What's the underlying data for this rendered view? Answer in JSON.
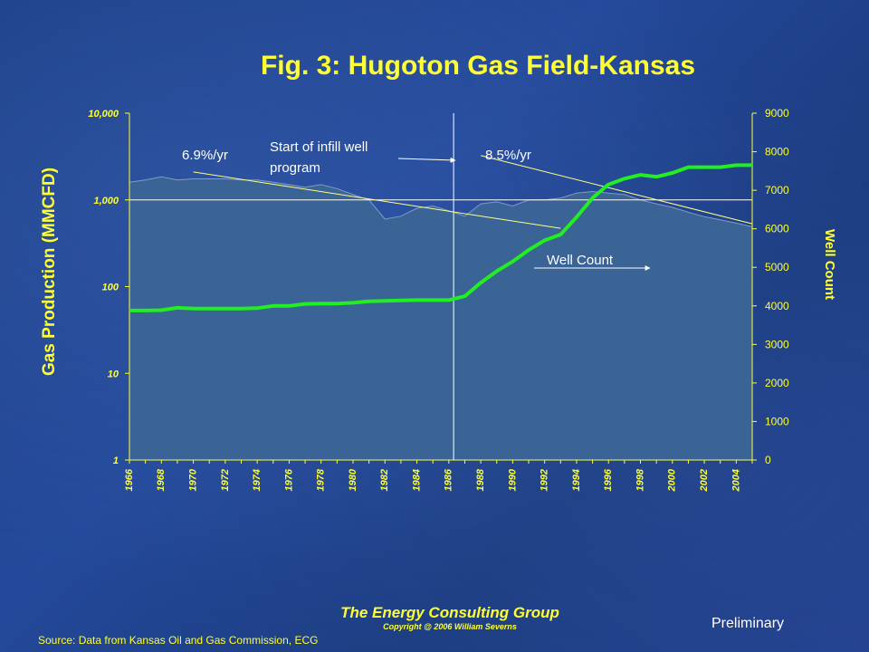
{
  "slide": {
    "title": "Fig. 3:  Hugoton Gas Field-Kansas",
    "company": "The Energy Consulting Group",
    "copyright": "Copyright @ 2006 William Severns",
    "source": "Source:  Data from Kansas Oil and Gas Commission, ECG",
    "status": "Preliminary"
  },
  "colors": {
    "axis_text": "#ffff33",
    "area_fill": "#3a6396",
    "well_line": "#22ee22",
    "annotation_text": "#ffffff"
  },
  "chart_data": {
    "type": "area",
    "ylabel": "Gas Production (MMCFD)",
    "y2label": "Well Count",
    "yscale": "log",
    "ylim": [
      1,
      10000
    ],
    "y2lim": [
      0,
      9000
    ],
    "xlim": [
      1966,
      2005
    ],
    "y_ticks": [
      1,
      10,
      100,
      1000,
      10000
    ],
    "y_tick_labels": [
      "1",
      "10",
      "100",
      "1,000",
      "10,000"
    ],
    "y2_ticks": [
      0,
      1000,
      2000,
      3000,
      4000,
      5000,
      6000,
      7000,
      8000,
      9000
    ],
    "y2_tick_labels": [
      "0",
      "1000",
      "2000",
      "3000",
      "4000",
      "5000",
      "6000",
      "7000",
      "8000",
      "9000"
    ],
    "x_ticks": [
      1966,
      1968,
      1970,
      1972,
      1974,
      1976,
      1978,
      1980,
      1982,
      1984,
      1986,
      1988,
      1990,
      1992,
      1994,
      1996,
      1998,
      2000,
      2002,
      2004
    ],
    "x_tick_labels": [
      "1966",
      "1968",
      "1970",
      "1972",
      "1974",
      "1976",
      "1978",
      "1980",
      "1982",
      "1984",
      "1986",
      "1988",
      "1990",
      "1992",
      "1994",
      "1996",
      "1998",
      "2000",
      "2002",
      "2004"
    ],
    "grid": false,
    "series": [
      {
        "name": "Gas Production",
        "axis": "left",
        "kind": "area",
        "x": [
          1966,
          1967,
          1968,
          1969,
          1970,
          1971,
          1972,
          1973,
          1974,
          1975,
          1976,
          1977,
          1978,
          1979,
          1980,
          1981,
          1982,
          1983,
          1984,
          1985,
          1986,
          1987,
          1988,
          1989,
          1990,
          1991,
          1992,
          1993,
          1994,
          1995,
          1996,
          1997,
          1998,
          1999,
          2000,
          2001,
          2002,
          2003,
          2004,
          2005
        ],
        "values": [
          1600,
          1700,
          1850,
          1700,
          1750,
          1750,
          1750,
          1700,
          1700,
          1600,
          1500,
          1400,
          1500,
          1350,
          1150,
          1000,
          600,
          650,
          800,
          850,
          750,
          650,
          900,
          950,
          850,
          1000,
          1000,
          1050,
          1200,
          1250,
          1200,
          1150,
          1000,
          900,
          820,
          720,
          640,
          590,
          540,
          490
        ]
      },
      {
        "name": "Well Count",
        "axis": "right",
        "kind": "line",
        "x": [
          1966,
          1967,
          1968,
          1969,
          1970,
          1971,
          1972,
          1973,
          1974,
          1975,
          1976,
          1977,
          1978,
          1979,
          1980,
          1981,
          1982,
          1983,
          1984,
          1985,
          1986,
          1987,
          1988,
          1989,
          1990,
          1991,
          1992,
          1993,
          1994,
          1995,
          1996,
          1997,
          1998,
          1999,
          2000,
          2001,
          2002,
          2003,
          2004,
          2005
        ],
        "values": [
          3880,
          3880,
          3890,
          3950,
          3930,
          3930,
          3930,
          3930,
          3940,
          4000,
          4000,
          4050,
          4060,
          4060,
          4080,
          4120,
          4130,
          4140,
          4150,
          4150,
          4150,
          4250,
          4600,
          4900,
          5150,
          5450,
          5700,
          5850,
          6300,
          6800,
          7150,
          7300,
          7400,
          7350,
          7450,
          7600,
          7600,
          7600,
          7650,
          7650
        ]
      }
    ],
    "trendlines": [
      {
        "name": "6.9%/yr",
        "axis": "left",
        "x": [
          1970,
          1993
        ],
        "y": [
          2100,
          470
        ]
      },
      {
        "name": "8.5%/yr",
        "axis": "left",
        "x": [
          1988,
          2005
        ],
        "y": [
          3250,
          530
        ]
      }
    ],
    "reference_lines": [
      {
        "kind": "vertical",
        "x": 1986.3
      },
      {
        "kind": "horizontal",
        "axis": "left",
        "y": 1000
      }
    ],
    "annotations": [
      {
        "text": "6.9%/yr"
      },
      {
        "text": "Start of infill well program",
        "lines": [
          "Start of infill well",
          "program"
        ]
      },
      {
        "text": "8.5%/yr"
      },
      {
        "text": "Well Count"
      }
    ]
  }
}
